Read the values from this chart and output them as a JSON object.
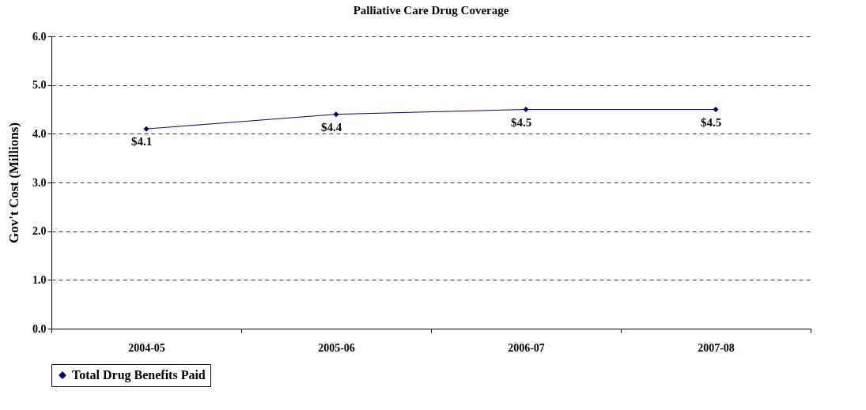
{
  "chart_data": {
    "type": "line",
    "title": "Palliative Care Drug Coverage",
    "ylabel": "Gov't Cost (Millions)",
    "categories": [
      "2004-05",
      "2005-06",
      "2006-07",
      "2007-08"
    ],
    "series": [
      {
        "name": "Total Drug Benefits Paid",
        "color": "#000080",
        "values": [
          4.1,
          4.4,
          4.5,
          4.5
        ],
        "value_labels": [
          "$4.1",
          "$4.4",
          "$4.5",
          "$4.5"
        ]
      }
    ],
    "ylim": [
      0,
      6
    ],
    "yticks": [
      {
        "value": 0,
        "label": "0.0"
      },
      {
        "value": 1,
        "label": "1.0"
      },
      {
        "value": 2,
        "label": "2.0"
      },
      {
        "value": 3,
        "label": "3.0"
      },
      {
        "value": 4,
        "label": "4.0"
      },
      {
        "value": 5,
        "label": "5.0"
      },
      {
        "value": 6,
        "label": "6.0"
      }
    ],
    "grid": "y",
    "legend": "bottom",
    "marker": "diamond",
    "line_style": "solid"
  }
}
